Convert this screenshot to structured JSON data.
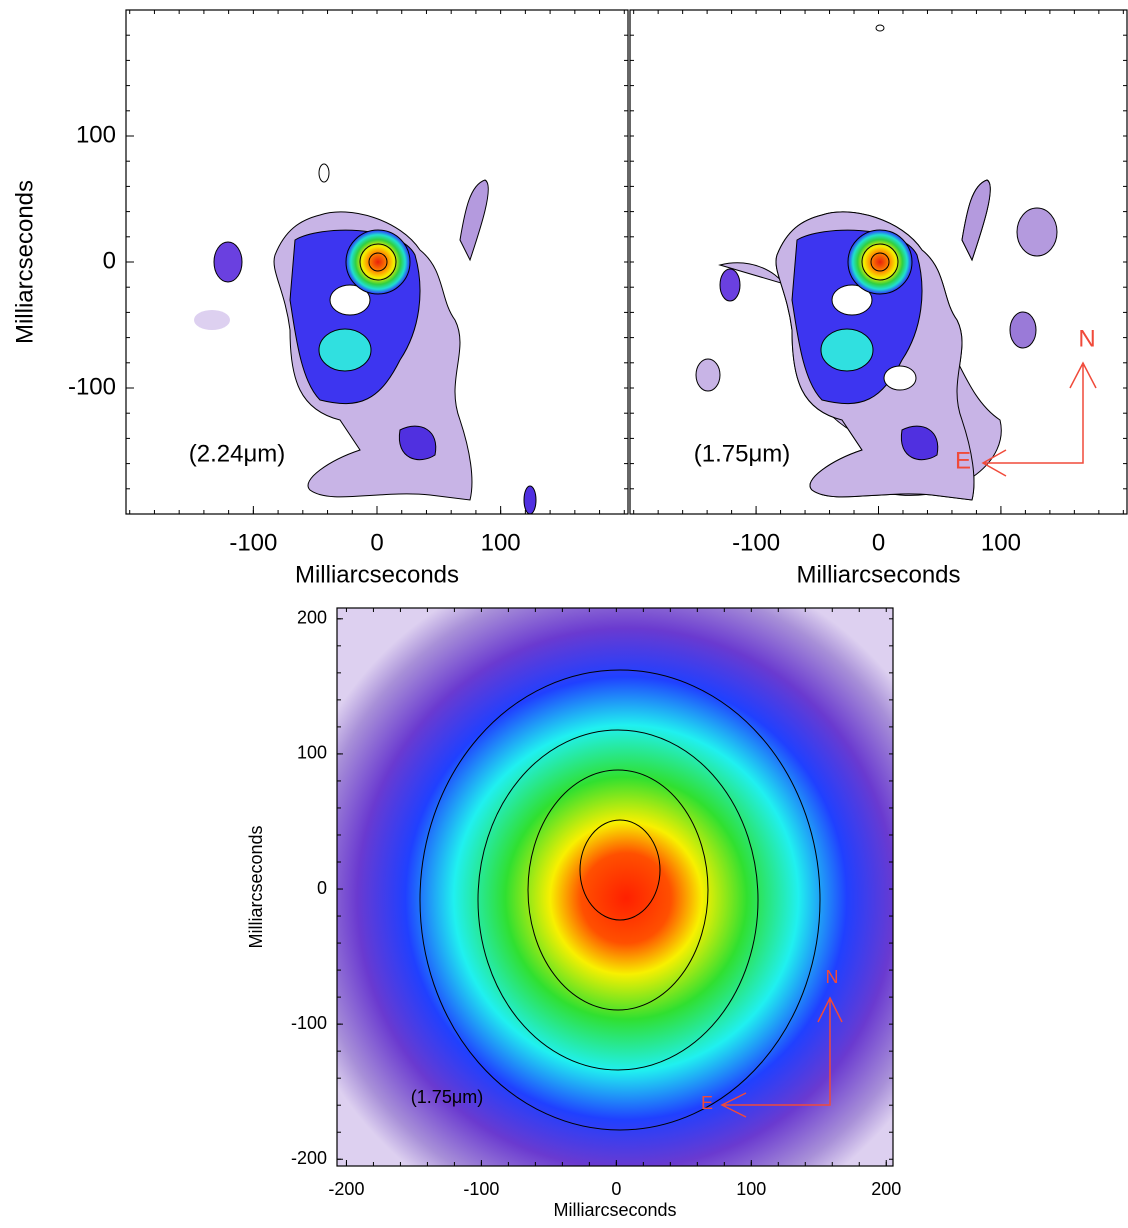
{
  "chart_data": [
    {
      "type": "image",
      "xlabel": "Milliarcseconds",
      "ylabel": "Milliarcseconds",
      "xlim": [
        -203,
        203
      ],
      "ylim": [
        -200,
        200
      ],
      "xticks": [
        -100,
        0,
        100
      ],
      "yticks": [
        100,
        0,
        -100
      ],
      "annotation": "(2.24μm)"
    },
    {
      "type": "image",
      "xlabel": "Milliarcseconds",
      "xlim": [
        -203,
        203
      ],
      "ylim": [
        -200,
        200
      ],
      "xticks": [
        -100,
        0,
        100
      ],
      "annotation": "(1.75μm)",
      "north": "N",
      "east": "E"
    },
    {
      "type": "image",
      "xlabel": "Milliarcseconds",
      "ylabel": "Milliarcseconds",
      "xlim": [
        -207,
        205
      ],
      "ylim": [
        -205,
        208
      ],
      "xticks": [
        -200,
        -100,
        0,
        100,
        200
      ],
      "yticks": [
        200,
        100,
        0,
        -100,
        -200
      ],
      "annotation": "(1.75μm)",
      "north": "N",
      "east": "E"
    }
  ]
}
